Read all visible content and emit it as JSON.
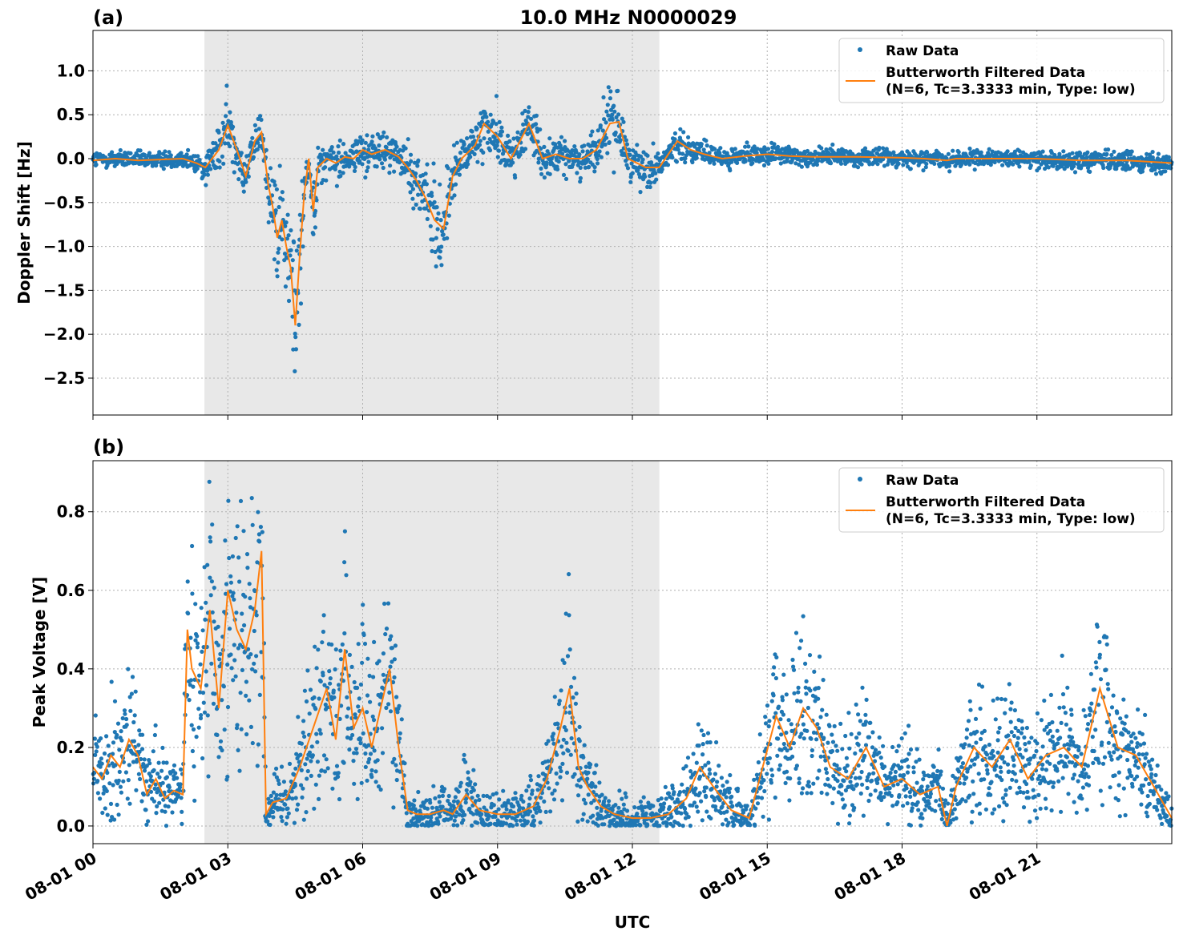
{
  "figure": {
    "title": "10.0 MHz N0000029",
    "xlabel": "UTC",
    "x_tick_labels": [
      "08-01 00",
      "08-01 03",
      "08-01 06",
      "08-01 09",
      "08-01 12",
      "08-01 15",
      "08-01 18",
      "08-01 21"
    ],
    "shaded_interval_hours": [
      2.48,
      12.6
    ],
    "colors": {
      "raw": "#1f77b4",
      "filtered": "#ff7f0e",
      "shade": "#e8e8e8",
      "grid": "#b0b0b0"
    }
  },
  "chart_data": [
    {
      "type": "scatter",
      "panel": "(a)",
      "title": "10.0 MHz N0000029",
      "ylabel": "Doppler Shift [Hz]",
      "xlabel": "",
      "xlim_hours": [
        0,
        24
      ],
      "ylim": [
        -2.92,
        1.46
      ],
      "y_ticks": [
        1.0,
        0.5,
        0.0,
        -0.5,
        -1.0,
        -1.5,
        -2.0,
        -2.5
      ],
      "y_tick_labels": [
        "1.0",
        "0.5",
        "0.0",
        "−0.5",
        "−1.0",
        "−1.5",
        "−2.0",
        "−2.5"
      ],
      "grid": true,
      "legend": {
        "placement": "top-right",
        "raw_label": "Raw Data",
        "filtered_label_line1": "Butterworth Filtered Data",
        "filtered_label_line2": "(N=6, Tc=3.3333 min, Type: low)"
      },
      "series": [
        {
          "name": "Butterworth Filtered Data",
          "x_hours": [
            0,
            0.5,
            1.0,
            1.5,
            2.0,
            2.3,
            2.5,
            2.8,
            3.0,
            3.2,
            3.4,
            3.6,
            3.75,
            3.9,
            4.0,
            4.1,
            4.2,
            4.3,
            4.4,
            4.5,
            4.6,
            4.7,
            4.8,
            4.9,
            5.0,
            5.2,
            5.4,
            5.6,
            5.8,
            6.0,
            6.2,
            6.5,
            6.8,
            7.0,
            7.2,
            7.4,
            7.6,
            7.8,
            8.0,
            8.2,
            8.5,
            8.7,
            9.0,
            9.3,
            9.5,
            9.7,
            10.0,
            10.3,
            10.6,
            10.9,
            11.2,
            11.5,
            11.7,
            11.9,
            12.1,
            12.3,
            12.6,
            13.0,
            13.3,
            13.6,
            14.0,
            14.5,
            15.0,
            15.5,
            16.0,
            17.0,
            18.0,
            18.5,
            19.0,
            19.2,
            20.0,
            21.0,
            22.0,
            23.0,
            24.0
          ],
          "y": [
            -0.02,
            0.0,
            -0.02,
            -0.01,
            0.0,
            -0.05,
            -0.1,
            0.1,
            0.38,
            0.1,
            -0.2,
            0.2,
            0.3,
            -0.3,
            -0.55,
            -0.9,
            -0.7,
            -1.0,
            -1.25,
            -1.9,
            -1.1,
            -0.4,
            0.0,
            -0.6,
            -0.1,
            0.0,
            -0.05,
            0.02,
            0.0,
            0.1,
            0.05,
            0.1,
            0.02,
            -0.1,
            -0.25,
            -0.45,
            -0.7,
            -0.8,
            -0.2,
            0.0,
            0.15,
            0.4,
            0.25,
            0.0,
            0.2,
            0.4,
            0.0,
            0.05,
            0.0,
            0.0,
            0.1,
            0.4,
            0.42,
            0.0,
            -0.05,
            -0.1,
            -0.1,
            0.2,
            0.1,
            0.05,
            0.0,
            0.03,
            0.05,
            0.03,
            0.02,
            0.02,
            0.01,
            0.0,
            -0.02,
            0.0,
            0.0,
            0.0,
            -0.02,
            -0.02,
            -0.05
          ]
        }
      ]
    },
    {
      "type": "scatter",
      "panel": "(b)",
      "ylabel": "Peak Voltage [V]",
      "xlabel": "UTC",
      "xlim_hours": [
        0,
        24
      ],
      "ylim": [
        -0.045,
        0.93
      ],
      "y_ticks": [
        0.8,
        0.6,
        0.4,
        0.2,
        0.0
      ],
      "y_tick_labels": [
        "0.8",
        "0.6",
        "0.4",
        "0.2",
        "0.0"
      ],
      "grid": true,
      "legend": {
        "placement": "top-right",
        "raw_label": "Raw Data",
        "filtered_label_line1": "Butterworth Filtered Data",
        "filtered_label_line2": "(N=6, Tc=3.3333 min, Type: low)"
      },
      "series": [
        {
          "name": "Butterworth Filtered Data",
          "x_hours": [
            0,
            0.2,
            0.4,
            0.6,
            0.8,
            1.0,
            1.2,
            1.4,
            1.6,
            1.8,
            2.0,
            2.1,
            2.2,
            2.4,
            2.6,
            2.8,
            3.0,
            3.2,
            3.4,
            3.6,
            3.75,
            3.85,
            4.0,
            4.3,
            4.6,
            4.9,
            5.2,
            5.4,
            5.6,
            5.8,
            6.0,
            6.2,
            6.4,
            6.6,
            6.8,
            7.0,
            7.2,
            7.5,
            7.8,
            8.0,
            8.3,
            8.6,
            9.0,
            9.4,
            9.8,
            10.1,
            10.4,
            10.6,
            10.8,
            11.0,
            11.3,
            11.6,
            12.0,
            12.4,
            12.8,
            13.2,
            13.5,
            13.8,
            14.2,
            14.6,
            14.9,
            15.2,
            15.5,
            15.8,
            16.1,
            16.4,
            16.8,
            17.2,
            17.6,
            18.0,
            18.4,
            18.8,
            19.0,
            19.2,
            19.6,
            20.0,
            20.4,
            20.8,
            21.2,
            21.6,
            22.0,
            22.4,
            22.8,
            23.2,
            23.6,
            24.0
          ],
          "y": [
            0.15,
            0.12,
            0.18,
            0.15,
            0.22,
            0.18,
            0.08,
            0.12,
            0.07,
            0.09,
            0.08,
            0.5,
            0.4,
            0.35,
            0.55,
            0.3,
            0.6,
            0.5,
            0.45,
            0.55,
            0.7,
            0.03,
            0.06,
            0.07,
            0.15,
            0.25,
            0.35,
            0.22,
            0.45,
            0.25,
            0.3,
            0.2,
            0.3,
            0.4,
            0.2,
            0.04,
            0.03,
            0.03,
            0.04,
            0.03,
            0.08,
            0.04,
            0.03,
            0.03,
            0.05,
            0.12,
            0.25,
            0.35,
            0.15,
            0.1,
            0.05,
            0.03,
            0.02,
            0.02,
            0.03,
            0.07,
            0.15,
            0.1,
            0.04,
            0.02,
            0.15,
            0.28,
            0.2,
            0.3,
            0.25,
            0.15,
            0.12,
            0.2,
            0.1,
            0.12,
            0.08,
            0.1,
            0.0,
            0.1,
            0.2,
            0.15,
            0.22,
            0.12,
            0.18,
            0.2,
            0.15,
            0.35,
            0.2,
            0.18,
            0.1,
            0.02
          ]
        }
      ]
    }
  ]
}
